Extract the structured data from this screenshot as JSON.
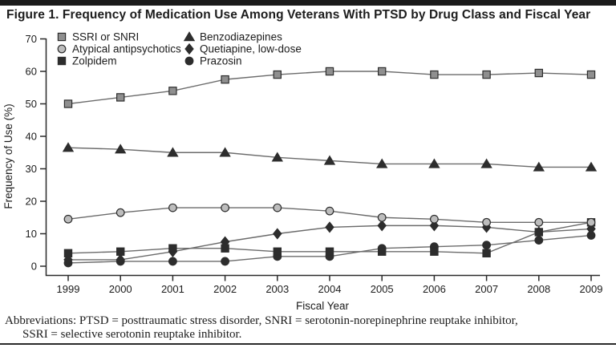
{
  "title": "Figure 1. Frequency of Medication Use Among Veterans With PTSD by Drug Class and Fiscal Year",
  "footnote": {
    "line1": "Abbreviations: PTSD = posttraumatic stress disorder, SNRI = serotonin-norepinephrine reuptake inhibitor,",
    "line2": "SSRI = selective serotonin reuptake inhibitor."
  },
  "colors": {
    "axis": "#2a2a2a",
    "line": "#6b6b6b",
    "text": "#1c1c1c",
    "top_bar": "#1b1b1b",
    "gray_marker_fill": "#8f8f8f",
    "light_gray_marker_fill": "#bdbdbd",
    "dark_marker_fill": "#2d2d2d"
  },
  "chart_data": {
    "type": "line",
    "title": "",
    "xlabel": "Fiscal Year",
    "ylabel": "Frequency of Use (%)",
    "ylim": [
      0,
      70
    ],
    "ytick_step": 10,
    "grid": false,
    "legend_position": "top-left inside plot, two columns, three rows",
    "x": [
      1999,
      2000,
      2001,
      2002,
      2003,
      2004,
      2005,
      2006,
      2007,
      2008,
      2009
    ],
    "series": [
      {
        "name": "SSRI or SNRI",
        "marker": "square",
        "fill": "#8f8f8f",
        "stroke": "#2d2d2d",
        "values": [
          50,
          52,
          54,
          57.5,
          59,
          60,
          60,
          59,
          59,
          59.5,
          59
        ]
      },
      {
        "name": "Atypical antipsychotics",
        "marker": "circle",
        "fill": "#bdbdbd",
        "stroke": "#2d2d2d",
        "values": [
          14.5,
          16.5,
          18,
          18,
          18,
          17,
          15,
          14.5,
          13.5,
          13.5,
          13.5
        ]
      },
      {
        "name": "Zolpidem",
        "marker": "square",
        "fill": "#2d2d2d",
        "stroke": "#2d2d2d",
        "values": [
          4,
          4.5,
          5.5,
          5.5,
          4.5,
          4.5,
          4.5,
          4.5,
          4,
          10.5,
          13.5
        ]
      },
      {
        "name": "Benzodiazepines",
        "marker": "triangle",
        "fill": "#2d2d2d",
        "stroke": "#2d2d2d",
        "values": [
          36.5,
          36,
          35,
          35,
          33.5,
          32.5,
          31.5,
          31.5,
          31.5,
          30.5,
          30.5
        ]
      },
      {
        "name": "Quetiapine, low-dose",
        "marker": "diamond",
        "fill": "#2d2d2d",
        "stroke": "#2d2d2d",
        "values": [
          2,
          2,
          4.5,
          7.5,
          10,
          12,
          12.5,
          12.5,
          12,
          10.5,
          11.5
        ]
      },
      {
        "name": "Prazosin",
        "marker": "circle",
        "fill": "#2d2d2d",
        "stroke": "#2d2d2d",
        "values": [
          1,
          1.5,
          1.5,
          1.5,
          3,
          3,
          5.5,
          6,
          6.5,
          8,
          9.5
        ]
      }
    ]
  }
}
